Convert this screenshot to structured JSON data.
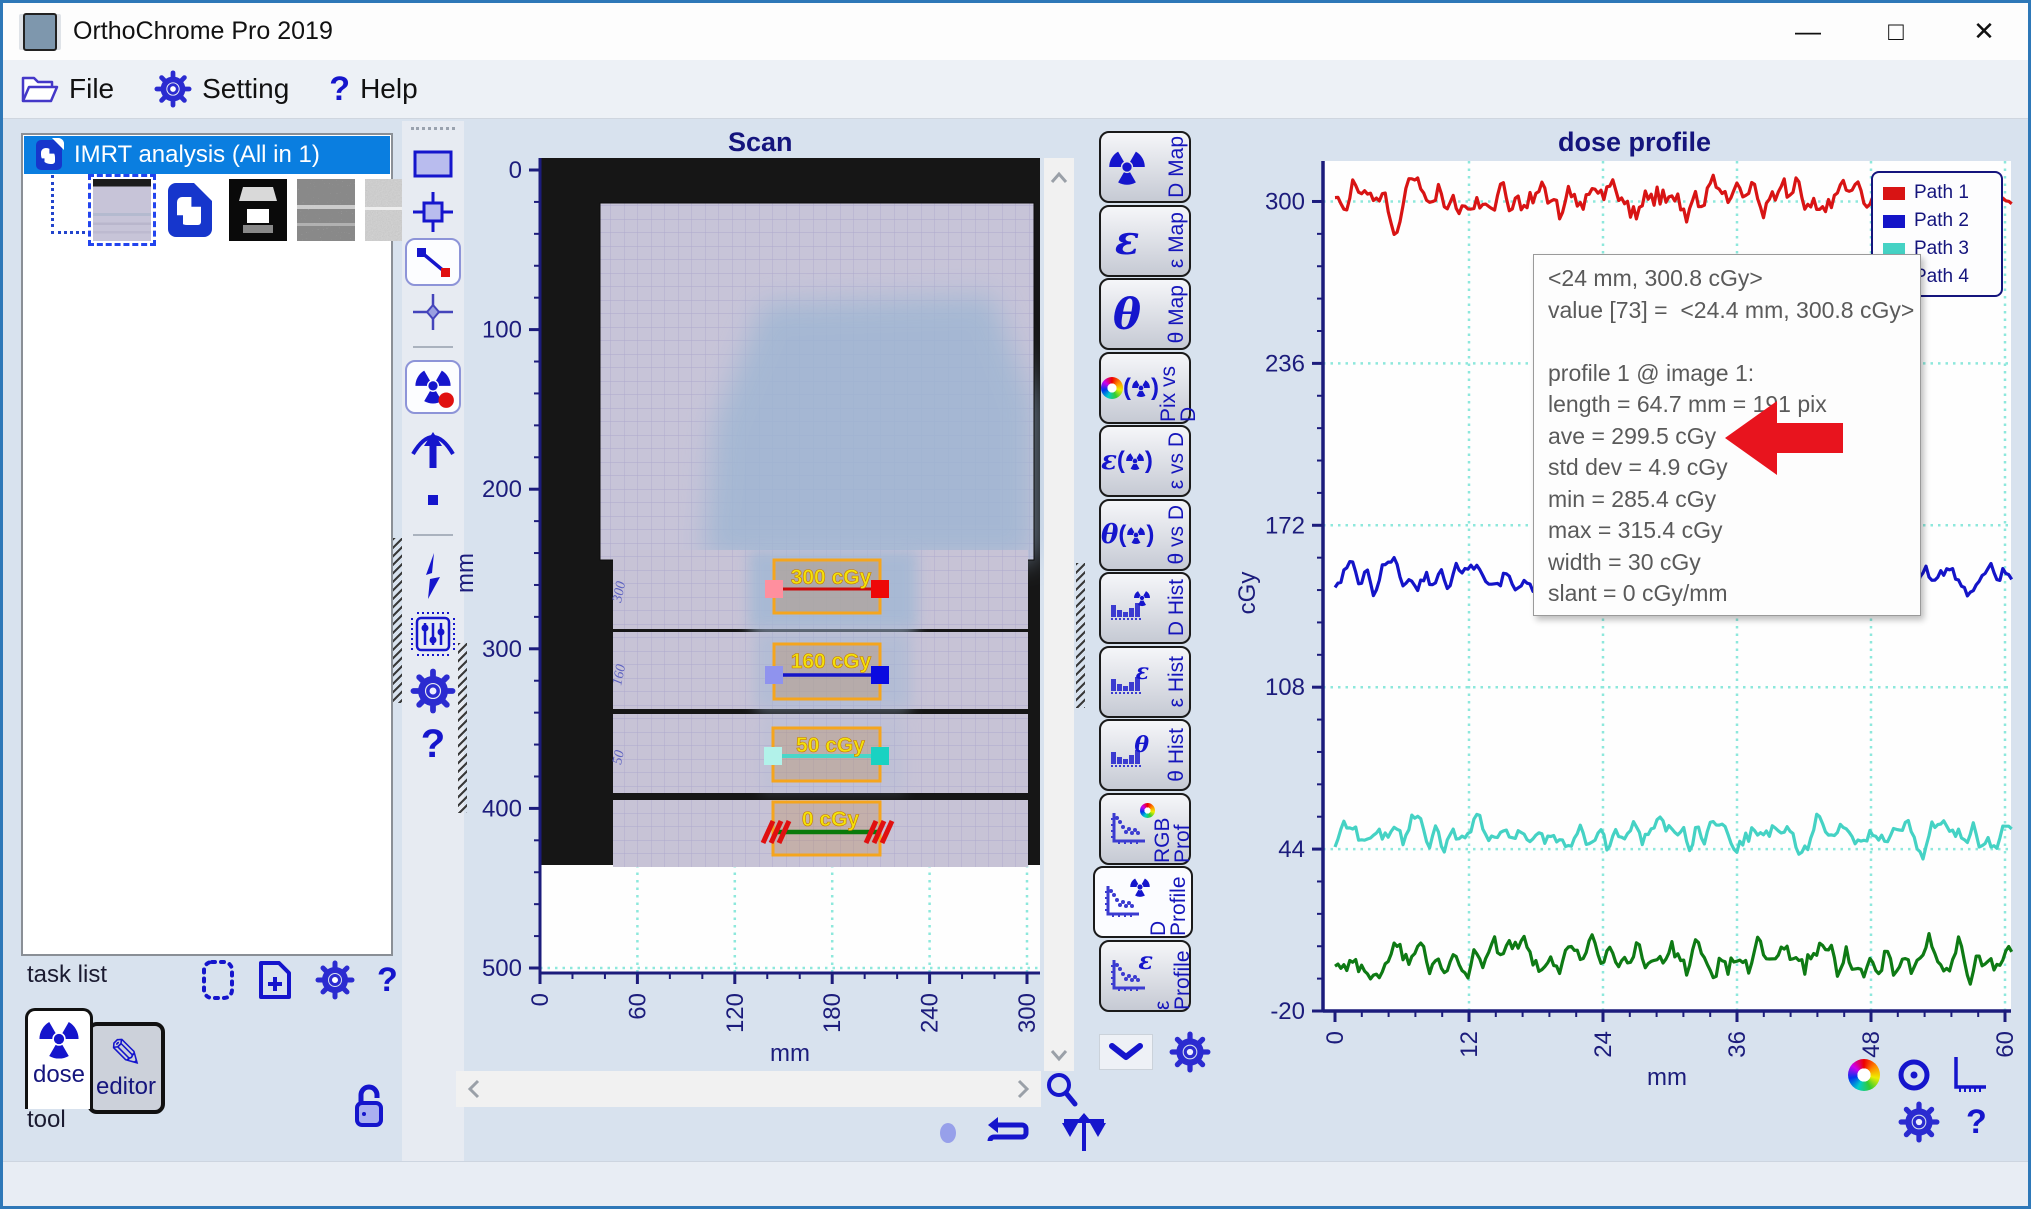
{
  "window": {
    "title": "OrthoChrome Pro 2019"
  },
  "menu": {
    "items": [
      {
        "label": "File"
      },
      {
        "label": "Setting"
      },
      {
        "label": "Help"
      }
    ]
  },
  "left_panel": {
    "tree_item": "IMRT analysis (All in 1)",
    "task_list_label": "task list",
    "tool_label": "tool",
    "tool_tabs": [
      {
        "label": "dose"
      },
      {
        "label": "editor"
      }
    ]
  },
  "scan": {
    "title": "Scan",
    "y_axis": {
      "label": "mm",
      "ticks": [
        0,
        100,
        200,
        300,
        400,
        500
      ]
    },
    "x_axis": {
      "label": "mm",
      "ticks": [
        0,
        60,
        120,
        180,
        240,
        300
      ]
    },
    "annotations": [
      {
        "label": "300 cGy",
        "film_note": "300"
      },
      {
        "label": "160 cGy",
        "film_note": "160"
      },
      {
        "label": "50 cGy",
        "film_note": "50"
      },
      {
        "label": "0 cGy",
        "film_note": ""
      }
    ]
  },
  "view_tabs": [
    {
      "label": "D Map",
      "icon": "trefoil"
    },
    {
      "label": "ε Map",
      "icon": "epsilon"
    },
    {
      "label": "θ Map",
      "icon": "theta"
    },
    {
      "label": "Pix vs D",
      "icon": "wheel-trefoil"
    },
    {
      "label": "ε vs D",
      "icon": "epsilon-trefoil"
    },
    {
      "label": "θ vs D",
      "icon": "theta-trefoil"
    },
    {
      "label": "D Hist",
      "icon": "hist-trefoil"
    },
    {
      "label": "ε Hist",
      "icon": "hist-epsilon"
    },
    {
      "label": "θ Hist",
      "icon": "hist-theta"
    },
    {
      "label": "RGB Prof",
      "icon": "prof-wheel"
    },
    {
      "label": "D Profile",
      "icon": "prof-trefoil",
      "selected": true
    },
    {
      "label": "ε Profile",
      "icon": "prof-epsilon"
    }
  ],
  "chart": {
    "title": "dose profile",
    "tooltip_lines": [
      "<24 mm, 300.8 cGy>",
      "value [73] =  <24.4 mm, 300.8 cGy>",
      "",
      "profile 1 @ image 1:",
      "length = 64.7 mm = 191 pix",
      "ave = 299.5 cGy",
      "std dev = 4.9 cGy",
      "min = 285.4 cGy",
      "max = 315.4 cGy",
      "width = 30 cGy",
      "slant = 0 cGy/mm"
    ]
  },
  "chart_data": {
    "type": "line",
    "title": "dose profile",
    "xlabel": "mm",
    "ylabel": "cGy",
    "xlim": [
      0,
      60.6
    ],
    "ylim": [
      -20,
      316
    ],
    "x_ticks": [
      0,
      12,
      24,
      36,
      48,
      60
    ],
    "y_ticks": [
      300,
      236,
      172,
      108,
      44,
      -20
    ],
    "grid": true,
    "legend_position": "top-right",
    "series": [
      {
        "name": "Path 1",
        "color": "#d81414",
        "mean": 300,
        "noise_sd": 4.9,
        "stats": {
          "ave": 299.5,
          "std_dev": 4.9,
          "min": 285.4,
          "max": 315.4
        }
      },
      {
        "name": "Path 2",
        "color": "#1414c8",
        "mean": 152,
        "noise_sd": 4.0
      },
      {
        "name": "Path 3",
        "color": "#45d2c4",
        "mean": 50,
        "noise_sd": 4.0
      },
      {
        "name": "Path 4",
        "color": "#0e7a14",
        "mean": 1,
        "noise_sd": 5.0
      }
    ]
  }
}
